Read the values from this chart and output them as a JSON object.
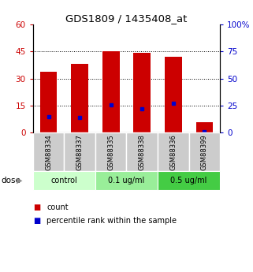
{
  "title": "GDS1809 / 1435408_at",
  "samples": [
    "GSM88334",
    "GSM88337",
    "GSM88335",
    "GSM88338",
    "GSM88336",
    "GSM88399"
  ],
  "bar_heights": [
    34,
    38,
    45,
    44.5,
    42,
    6
  ],
  "percentile_values": [
    15,
    14,
    26,
    22,
    27,
    1
  ],
  "bar_color": "#cc0000",
  "marker_color": "#0000cc",
  "ylim_left": [
    0,
    60
  ],
  "ylim_right": [
    0,
    100
  ],
  "yticks_left": [
    0,
    15,
    30,
    45,
    60
  ],
  "yticks_right": [
    0,
    25,
    50,
    75,
    100
  ],
  "ytick_labels_left": [
    "0",
    "15",
    "30",
    "45",
    "60"
  ],
  "ytick_labels_right": [
    "0",
    "25",
    "50",
    "75",
    "100%"
  ],
  "dose_groups": [
    {
      "label": "control",
      "indices": [
        0,
        1
      ],
      "color": "#ccffcc"
    },
    {
      "label": "0.1 ug/ml",
      "indices": [
        2,
        3
      ],
      "color": "#99ee99"
    },
    {
      "label": "0.5 ug/ml",
      "indices": [
        4,
        5
      ],
      "color": "#44cc44"
    }
  ],
  "dose_label": "dose",
  "legend_count_label": "count",
  "legend_pct_label": "percentile rank within the sample",
  "sample_bg_color": "#cccccc",
  "plot_bg_color": "#ffffff",
  "bar_width": 0.55,
  "title_fontsize": 9.5
}
